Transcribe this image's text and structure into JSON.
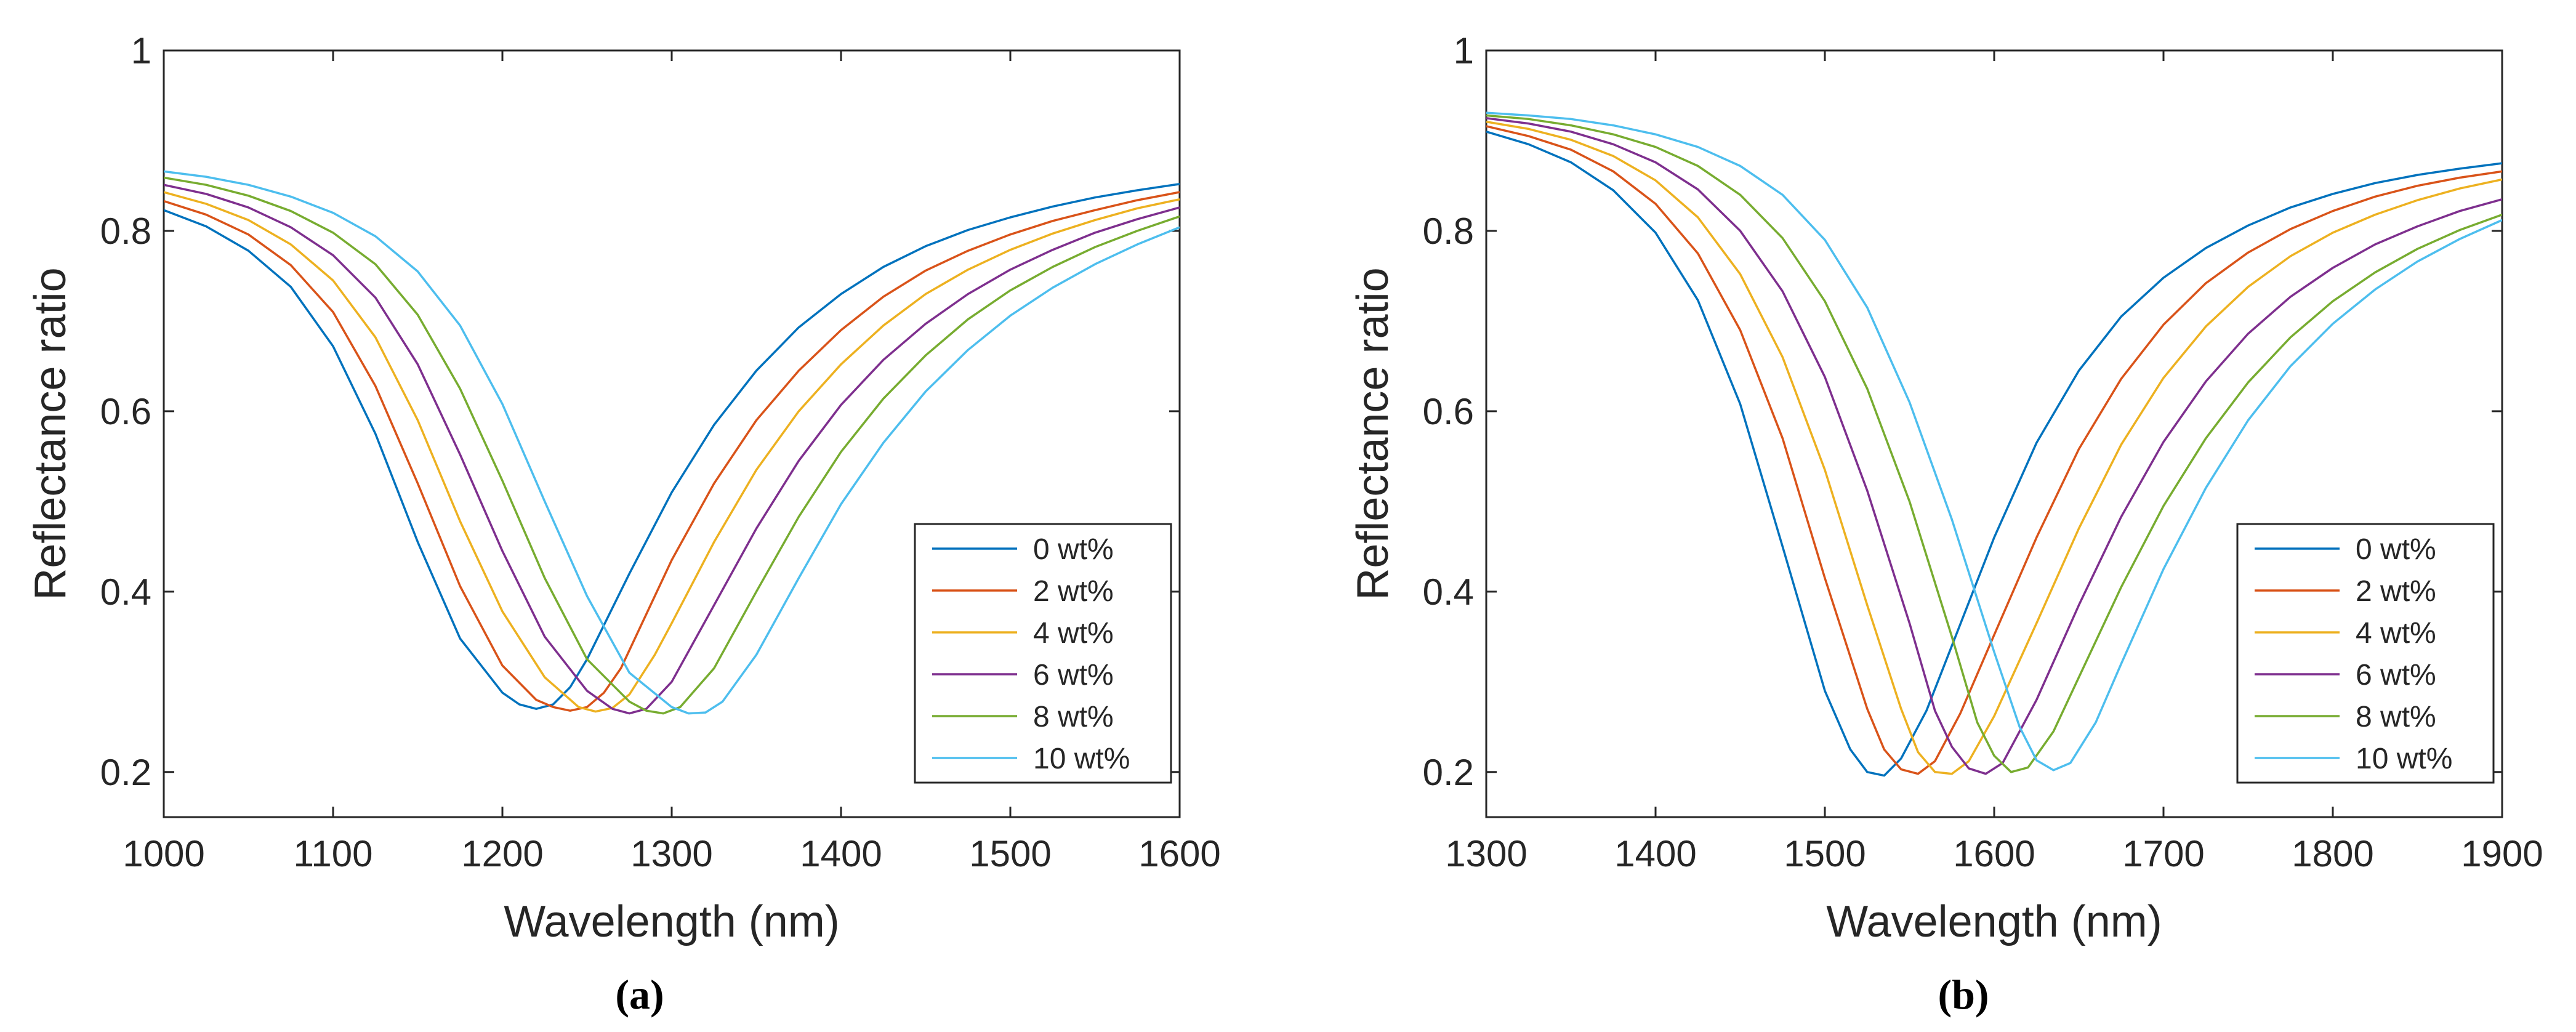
{
  "chart_data": [
    {
      "type": "line",
      "caption": "(a)",
      "xlabel": "Wavelength (nm)",
      "ylabel": "Reflectance ratio",
      "xlim": [
        1000,
        1600
      ],
      "ylim": [
        0.15,
        1.0
      ],
      "xticks": [
        "1000",
        "1100",
        "1200",
        "1300",
        "1400",
        "1500",
        "1600"
      ],
      "yticks": [
        "0.2",
        "0.4",
        "0.6",
        "0.8",
        "1"
      ],
      "legend_position": "bottom-right",
      "grid": false,
      "series": [
        {
          "name": "0 wt%",
          "color": "#0072BD",
          "x": [
            1000,
            1025,
            1050,
            1075,
            1100,
            1125,
            1150,
            1175,
            1200,
            1210,
            1220,
            1230,
            1240,
            1250,
            1275,
            1300,
            1325,
            1350,
            1375,
            1400,
            1425,
            1450,
            1475,
            1500,
            1525,
            1550,
            1575,
            1600
          ],
          "y": [
            0.823,
            0.805,
            0.778,
            0.738,
            0.672,
            0.575,
            0.455,
            0.348,
            0.288,
            0.275,
            0.27,
            0.275,
            0.294,
            0.325,
            0.42,
            0.51,
            0.585,
            0.645,
            0.693,
            0.73,
            0.76,
            0.783,
            0.801,
            0.815,
            0.827,
            0.837,
            0.845,
            0.852
          ]
        },
        {
          "name": "2 wt%",
          "color": "#D95319",
          "x": [
            1000,
            1025,
            1050,
            1075,
            1100,
            1125,
            1150,
            1175,
            1200,
            1220,
            1230,
            1240,
            1250,
            1260,
            1270,
            1300,
            1325,
            1350,
            1375,
            1400,
            1425,
            1450,
            1475,
            1500,
            1525,
            1550,
            1575,
            1600
          ],
          "y": [
            0.833,
            0.818,
            0.796,
            0.762,
            0.71,
            0.628,
            0.52,
            0.406,
            0.318,
            0.28,
            0.272,
            0.268,
            0.272,
            0.288,
            0.315,
            0.435,
            0.52,
            0.59,
            0.645,
            0.69,
            0.727,
            0.756,
            0.778,
            0.796,
            0.811,
            0.823,
            0.834,
            0.843
          ]
        },
        {
          "name": "4 wt%",
          "color": "#EDB120",
          "x": [
            1000,
            1025,
            1050,
            1075,
            1100,
            1125,
            1150,
            1175,
            1200,
            1225,
            1245,
            1255,
            1265,
            1275,
            1290,
            1300,
            1325,
            1350,
            1375,
            1400,
            1425,
            1450,
            1475,
            1500,
            1525,
            1550,
            1575,
            1600
          ],
          "y": [
            0.843,
            0.83,
            0.812,
            0.785,
            0.745,
            0.682,
            0.59,
            0.478,
            0.378,
            0.305,
            0.272,
            0.267,
            0.271,
            0.286,
            0.33,
            0.365,
            0.455,
            0.535,
            0.6,
            0.652,
            0.695,
            0.73,
            0.757,
            0.779,
            0.797,
            0.812,
            0.825,
            0.835
          ]
        },
        {
          "name": "6 wt%",
          "color": "#7E2F8E",
          "x": [
            1000,
            1025,
            1050,
            1075,
            1100,
            1125,
            1150,
            1175,
            1200,
            1225,
            1250,
            1265,
            1275,
            1285,
            1300,
            1325,
            1350,
            1375,
            1400,
            1425,
            1450,
            1475,
            1500,
            1525,
            1550,
            1575,
            1600
          ],
          "y": [
            0.851,
            0.841,
            0.826,
            0.804,
            0.773,
            0.726,
            0.652,
            0.552,
            0.445,
            0.35,
            0.29,
            0.27,
            0.265,
            0.27,
            0.3,
            0.385,
            0.47,
            0.545,
            0.607,
            0.657,
            0.697,
            0.73,
            0.757,
            0.779,
            0.798,
            0.813,
            0.826
          ]
        },
        {
          "name": "8 wt%",
          "color": "#77AC30",
          "x": [
            1000,
            1025,
            1050,
            1075,
            1100,
            1125,
            1150,
            1175,
            1200,
            1225,
            1250,
            1275,
            1285,
            1295,
            1305,
            1325,
            1350,
            1375,
            1400,
            1425,
            1450,
            1475,
            1500,
            1525,
            1550,
            1575,
            1600
          ],
          "y": [
            0.859,
            0.851,
            0.839,
            0.822,
            0.798,
            0.763,
            0.707,
            0.625,
            0.523,
            0.415,
            0.325,
            0.278,
            0.268,
            0.265,
            0.272,
            0.315,
            0.4,
            0.483,
            0.555,
            0.614,
            0.662,
            0.702,
            0.734,
            0.76,
            0.782,
            0.8,
            0.816
          ]
        },
        {
          "name": "10 wt%",
          "color": "#4DBEEE",
          "x": [
            1000,
            1025,
            1050,
            1075,
            1100,
            1125,
            1150,
            1175,
            1200,
            1225,
            1250,
            1275,
            1300,
            1310,
            1320,
            1330,
            1350,
            1375,
            1400,
            1425,
            1450,
            1475,
            1500,
            1525,
            1550,
            1575,
            1600
          ],
          "y": [
            0.866,
            0.86,
            0.851,
            0.838,
            0.82,
            0.794,
            0.755,
            0.695,
            0.608,
            0.5,
            0.395,
            0.31,
            0.272,
            0.265,
            0.266,
            0.278,
            0.33,
            0.415,
            0.497,
            0.565,
            0.622,
            0.668,
            0.706,
            0.737,
            0.763,
            0.785,
            0.804
          ]
        }
      ]
    },
    {
      "type": "line",
      "caption": "(b)",
      "xlabel": "Wavelength (nm)",
      "ylabel": "Reflectance ratio",
      "xlim": [
        1300,
        1900
      ],
      "ylim": [
        0.15,
        1.0
      ],
      "xticks": [
        "1300",
        "1400",
        "1500",
        "1600",
        "1700",
        "1800",
        "1900"
      ],
      "yticks": [
        "0.2",
        "0.4",
        "0.6",
        "0.8",
        "1"
      ],
      "legend_position": "bottom-right",
      "grid": false,
      "series": [
        {
          "name": "0 wt%",
          "color": "#0072BD",
          "x": [
            1300,
            1325,
            1350,
            1375,
            1400,
            1425,
            1450,
            1475,
            1500,
            1515,
            1525,
            1535,
            1545,
            1560,
            1575,
            1600,
            1625,
            1650,
            1675,
            1700,
            1725,
            1750,
            1775,
            1800,
            1825,
            1850,
            1875,
            1900
          ],
          "y": [
            0.91,
            0.896,
            0.876,
            0.845,
            0.798,
            0.723,
            0.608,
            0.45,
            0.29,
            0.225,
            0.2,
            0.196,
            0.215,
            0.268,
            0.34,
            0.46,
            0.565,
            0.645,
            0.705,
            0.748,
            0.781,
            0.806,
            0.826,
            0.841,
            0.853,
            0.862,
            0.869,
            0.875
          ]
        },
        {
          "name": "2 wt%",
          "color": "#D95319",
          "x": [
            1300,
            1325,
            1350,
            1375,
            1400,
            1425,
            1450,
            1475,
            1500,
            1525,
            1535,
            1545,
            1555,
            1565,
            1580,
            1600,
            1625,
            1650,
            1675,
            1700,
            1725,
            1750,
            1775,
            1800,
            1825,
            1850,
            1875,
            1900
          ],
          "y": [
            0.916,
            0.905,
            0.89,
            0.866,
            0.83,
            0.775,
            0.69,
            0.57,
            0.415,
            0.27,
            0.225,
            0.203,
            0.198,
            0.212,
            0.265,
            0.352,
            0.46,
            0.558,
            0.636,
            0.696,
            0.742,
            0.776,
            0.802,
            0.822,
            0.838,
            0.85,
            0.859,
            0.866
          ]
        },
        {
          "name": "4 wt%",
          "color": "#EDB120",
          "x": [
            1300,
            1325,
            1350,
            1375,
            1400,
            1425,
            1450,
            1475,
            1500,
            1525,
            1545,
            1555,
            1565,
            1575,
            1585,
            1600,
            1625,
            1650,
            1675,
            1700,
            1725,
            1750,
            1775,
            1800,
            1825,
            1850,
            1875,
            1900
          ],
          "y": [
            0.921,
            0.913,
            0.901,
            0.883,
            0.856,
            0.815,
            0.752,
            0.66,
            0.535,
            0.385,
            0.27,
            0.222,
            0.2,
            0.198,
            0.212,
            0.262,
            0.365,
            0.47,
            0.563,
            0.637,
            0.694,
            0.738,
            0.772,
            0.798,
            0.818,
            0.834,
            0.847,
            0.857
          ]
        },
        {
          "name": "6 wt%",
          "color": "#7E2F8E",
          "x": [
            1300,
            1325,
            1350,
            1375,
            1400,
            1425,
            1450,
            1475,
            1500,
            1525,
            1550,
            1565,
            1575,
            1585,
            1595,
            1605,
            1625,
            1650,
            1675,
            1700,
            1725,
            1750,
            1775,
            1800,
            1825,
            1850,
            1875,
            1900
          ],
          "y": [
            0.925,
            0.919,
            0.91,
            0.896,
            0.876,
            0.846,
            0.8,
            0.733,
            0.638,
            0.512,
            0.365,
            0.268,
            0.228,
            0.204,
            0.198,
            0.21,
            0.28,
            0.385,
            0.483,
            0.566,
            0.633,
            0.686,
            0.727,
            0.759,
            0.785,
            0.805,
            0.822,
            0.835
          ]
        },
        {
          "name": "8 wt%",
          "color": "#77AC30",
          "x": [
            1300,
            1325,
            1350,
            1375,
            1400,
            1425,
            1450,
            1475,
            1500,
            1525,
            1550,
            1575,
            1590,
            1600,
            1610,
            1620,
            1635,
            1650,
            1675,
            1700,
            1725,
            1750,
            1775,
            1800,
            1825,
            1850,
            1875,
            1900
          ],
          "y": [
            0.928,
            0.924,
            0.917,
            0.907,
            0.893,
            0.872,
            0.84,
            0.792,
            0.722,
            0.625,
            0.5,
            0.35,
            0.255,
            0.218,
            0.2,
            0.205,
            0.245,
            0.305,
            0.405,
            0.495,
            0.57,
            0.632,
            0.682,
            0.722,
            0.754,
            0.78,
            0.801,
            0.818
          ]
        },
        {
          "name": "10 wt%",
          "color": "#4DBEEE",
          "x": [
            1300,
            1325,
            1350,
            1375,
            1400,
            1425,
            1450,
            1475,
            1500,
            1525,
            1550,
            1575,
            1600,
            1615,
            1625,
            1635,
            1645,
            1660,
            1675,
            1700,
            1725,
            1750,
            1775,
            1800,
            1825,
            1850,
            1875,
            1900
          ],
          "y": [
            0.931,
            0.928,
            0.924,
            0.917,
            0.907,
            0.893,
            0.872,
            0.84,
            0.79,
            0.715,
            0.61,
            0.48,
            0.333,
            0.25,
            0.213,
            0.202,
            0.21,
            0.255,
            0.32,
            0.425,
            0.515,
            0.59,
            0.65,
            0.697,
            0.735,
            0.766,
            0.791,
            0.812
          ]
        }
      ]
    }
  ]
}
